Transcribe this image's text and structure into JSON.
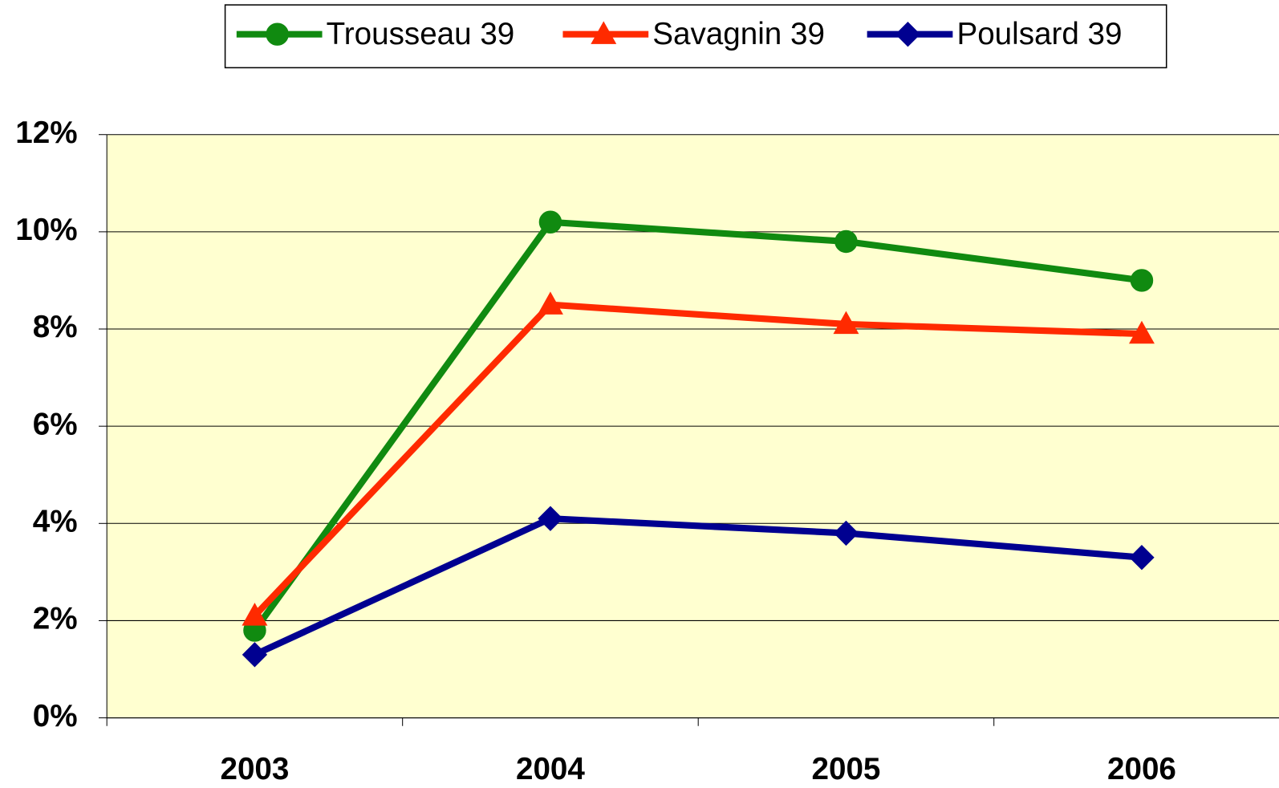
{
  "chart_data": {
    "type": "line",
    "categories": [
      "2003",
      "2004",
      "2005",
      "2006"
    ],
    "series": [
      {
        "name": "Trousseau 39",
        "color": "#108a10",
        "marker": "circle",
        "values": [
          1.8,
          10.2,
          9.8,
          9.0
        ]
      },
      {
        "name": "Savagnin 39",
        "color": "#ff2a00",
        "marker": "triangle",
        "values": [
          2.1,
          8.5,
          8.1,
          7.9
        ]
      },
      {
        "name": "Poulsard 39",
        "color": "#000090",
        "marker": "diamond",
        "values": [
          1.3,
          4.1,
          3.8,
          3.3
        ]
      }
    ],
    "ylim": [
      0,
      12
    ],
    "yticks": [
      {
        "value": 0,
        "label": "0%"
      },
      {
        "value": 2,
        "label": "2%"
      },
      {
        "value": 4,
        "label": "4%"
      },
      {
        "value": 6,
        "label": "6%"
      },
      {
        "value": 8,
        "label": "8%"
      },
      {
        "value": 10,
        "label": "10%"
      },
      {
        "value": 12,
        "label": "12%"
      }
    ],
    "grid": true,
    "legend": "top",
    "plot_background": "#ffffd0"
  }
}
